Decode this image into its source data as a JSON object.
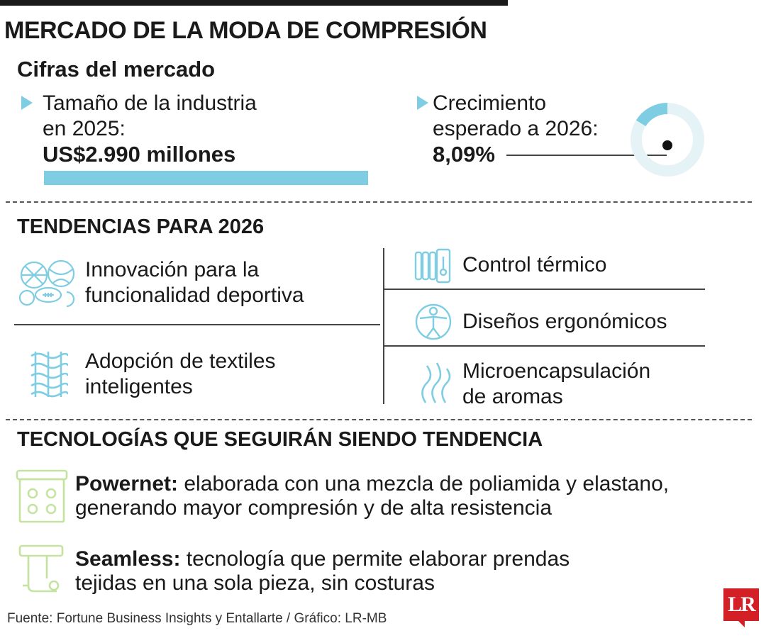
{
  "title": "MERCADO DE LA MODA DE COMPRESIÓN",
  "market": {
    "heading": "Cifras del mercado",
    "size": {
      "line1": "Tamaño de la industria",
      "line2": "en 2025:",
      "value": "US$2.990 millones"
    },
    "growth": {
      "line1": "Crecimiento",
      "line2": "esperado a 2026:",
      "value": "8,09%",
      "percent": 8.09
    }
  },
  "trends": {
    "heading": "TENDENCIAS PARA 2026",
    "items": [
      {
        "line1": "Innovación para la",
        "line2": "funcionalidad deportiva",
        "icon": "sports-balls-icon"
      },
      {
        "line1": "Adopción de textiles",
        "line2": "inteligentes",
        "icon": "woven-textile-icon"
      },
      {
        "line1": "Control térmico",
        "icon": "thermostat-icon"
      },
      {
        "line1": "Diseños ergonómicos",
        "icon": "ergonomic-body-icon"
      },
      {
        "line1": "Microencapsulación",
        "line2": "de aromas",
        "icon": "aroma-waves-icon"
      }
    ]
  },
  "tech": {
    "heading": "TECNOLOGÍAS QUE SEGUIRÁN SIENDO TENDENCIA",
    "items": [
      {
        "name": "Powernet:",
        "line1": " elaborada con una mezcla de poliamida y elastano,",
        "line2": "generando mayor compresión y de alta resistencia",
        "icon": "fabric-roll-icon"
      },
      {
        "name": "Seamless:",
        "line1": " tecnología que permite elaborar prendas",
        "line2": "tejidas en una sola pieza, sin costuras",
        "icon": "knitting-machine-icon"
      }
    ]
  },
  "footer": "Fuente: Fortune Business Insights y Entallarte / Gráfico: LR-MB",
  "logo": "LR",
  "colors": {
    "accent": "#7fcde2",
    "accent_light": "#e6f3f6",
    "icon_green": "#c5e3a0",
    "logo_red": "#d32027"
  }
}
